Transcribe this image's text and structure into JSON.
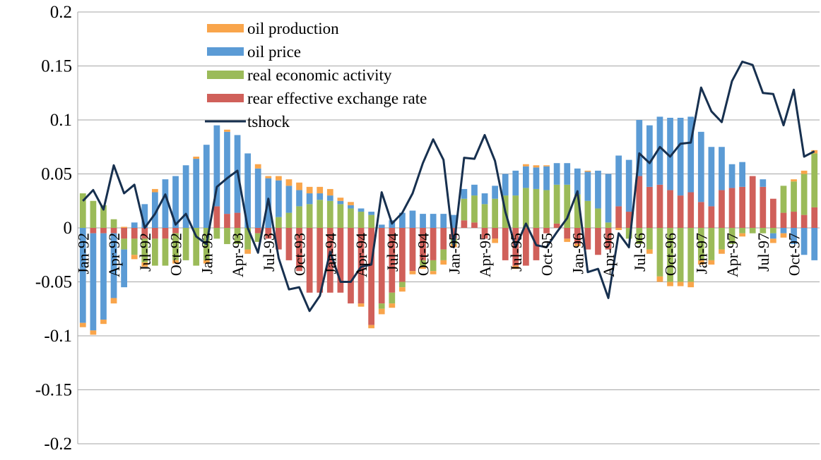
{
  "chart_data": {
    "type": "bar",
    "categories": [
      "Jan-92",
      null,
      null,
      "Apr-92",
      null,
      null,
      "Jul-92",
      null,
      null,
      "Oct-92",
      null,
      null,
      "Jan-93",
      null,
      null,
      "Apr-93",
      null,
      null,
      "Jul-93",
      null,
      null,
      "Oct-93",
      null,
      null,
      "Jan-94",
      null,
      null,
      "Apr-94",
      null,
      null,
      "Jul-94",
      null,
      null,
      "Oct-94",
      null,
      null,
      "Jan-95",
      null,
      null,
      "Apr-95",
      null,
      null,
      "Jul-95",
      null,
      null,
      "Oct-95",
      null,
      null,
      "Jan-96",
      null,
      null,
      "Apr-96",
      null,
      null,
      "Jul-96",
      null,
      null,
      "Oct-96",
      null,
      null,
      "Jan-97",
      null,
      null,
      "Apr-97",
      null,
      null,
      "Jul-97",
      null,
      null,
      "Oct-97",
      null,
      null
    ],
    "series": [
      {
        "name": "oil production",
        "color": "#f9a54b",
        "values": [
          -0.004,
          -0.004,
          -0.004,
          -0.005,
          0.001,
          -0.004,
          -0.004,
          0.003,
          0.0,
          -0.003,
          0.0,
          0.002,
          -0.003,
          0.0,
          0.002,
          0.0,
          -0.004,
          0.004,
          0.002,
          0.004,
          0.006,
          0.007,
          0.006,
          0.006,
          0.006,
          0.003,
          0.003,
          -0.003,
          -0.003,
          -0.005,
          -0.004,
          -0.004,
          -0.003,
          -0.003,
          -0.003,
          -0.004,
          -0.003,
          0.0,
          0.0,
          0.0,
          -0.004,
          0.0,
          -0.003,
          0.002,
          0.002,
          0.001,
          0.0,
          -0.003,
          -0.002,
          0.001,
          0.0,
          0.0,
          -0.002,
          0.0,
          0.0,
          -0.004,
          -0.005,
          -0.004,
          -0.004,
          -0.005,
          -0.004,
          -0.004,
          -0.004,
          0.0,
          -0.003,
          0.0,
          0.0,
          -0.004,
          -0.004,
          0.002,
          0.003,
          0.003
        ]
      },
      {
        "name": "oil price",
        "color": "#5b9bd5",
        "values": [
          -0.088,
          -0.09,
          -0.08,
          -0.06,
          -0.035,
          0.005,
          0.022,
          0.033,
          0.045,
          0.048,
          0.058,
          0.064,
          0.077,
          0.075,
          0.076,
          0.072,
          0.069,
          0.055,
          0.046,
          0.034,
          0.025,
          0.015,
          0.01,
          0.006,
          0.005,
          0.003,
          0.003,
          0.003,
          0.003,
          0.003,
          0.007,
          0.014,
          0.016,
          0.013,
          0.013,
          0.013,
          0.012,
          0.009,
          0.01,
          0.01,
          0.012,
          0.02,
          0.023,
          0.02,
          0.02,
          0.022,
          0.02,
          0.02,
          0.024,
          0.027,
          0.035,
          0.045,
          0.047,
          0.048,
          0.052,
          0.057,
          0.063,
          0.067,
          0.072,
          0.07,
          0.065,
          0.055,
          0.04,
          0.022,
          0.023,
          0.0,
          0.007,
          -0.005,
          -0.005,
          -0.015,
          -0.025,
          -0.03
        ]
      },
      {
        "name": "real economic activity",
        "color": "#9bbb59",
        "values": [
          0.032,
          0.025,
          0.021,
          0.008,
          -0.01,
          -0.015,
          -0.022,
          -0.025,
          -0.025,
          -0.025,
          -0.03,
          -0.035,
          -0.03,
          -0.01,
          -0.015,
          -0.015,
          -0.02,
          -0.008,
          0.0,
          0.01,
          0.014,
          0.02,
          0.022,
          0.026,
          0.025,
          0.022,
          0.018,
          0.015,
          0.012,
          -0.005,
          -0.01,
          -0.005,
          0.0,
          -0.005,
          -0.01,
          -0.01,
          -0.005,
          0.02,
          0.025,
          0.022,
          0.027,
          0.03,
          0.03,
          0.037,
          0.036,
          0.035,
          0.036,
          0.04,
          0.031,
          0.025,
          0.018,
          0.005,
          0.0,
          -0.01,
          -0.015,
          -0.02,
          -0.045,
          -0.05,
          -0.05,
          -0.05,
          -0.03,
          -0.03,
          -0.02,
          -0.015,
          -0.005,
          -0.005,
          -0.005,
          -0.005,
          0.025,
          0.028,
          0.038,
          0.05
        ]
      },
      {
        "name": "rear effective exchange rate",
        "color": "#d0605a",
        "values": [
          0.0,
          -0.005,
          -0.005,
          -0.005,
          -0.01,
          -0.01,
          -0.01,
          -0.01,
          -0.01,
          -0.005,
          0.0,
          0.0,
          0.0,
          0.02,
          0.013,
          0.014,
          0.0,
          -0.005,
          -0.01,
          -0.02,
          -0.03,
          -0.04,
          -0.06,
          -0.06,
          -0.06,
          -0.06,
          -0.07,
          -0.07,
          -0.09,
          -0.07,
          -0.06,
          -0.05,
          -0.04,
          -0.03,
          -0.03,
          -0.02,
          -0.01,
          0.007,
          0.005,
          -0.01,
          -0.01,
          -0.03,
          -0.035,
          -0.035,
          -0.03,
          -0.005,
          0.004,
          -0.01,
          -0.015,
          -0.02,
          -0.025,
          -0.02,
          0.02,
          0.015,
          0.048,
          0.038,
          0.04,
          0.035,
          0.03,
          0.033,
          0.024,
          0.02,
          0.035,
          0.037,
          0.038,
          0.048,
          0.038,
          0.027,
          0.014,
          0.015,
          0.012,
          0.019
        ]
      },
      {
        "name": "tshock",
        "color": "#17304f",
        "line": true,
        "values": [
          0.025,
          0.035,
          0.017,
          0.058,
          0.032,
          0.04,
          0.0,
          0.013,
          0.031,
          0.003,
          0.013,
          -0.008,
          -0.015,
          0.038,
          0.046,
          0.053,
          0.0,
          -0.023,
          0.027,
          -0.028,
          -0.057,
          -0.055,
          -0.077,
          -0.063,
          -0.022,
          -0.05,
          -0.05,
          -0.036,
          -0.034,
          0.033,
          0.004,
          0.014,
          0.032,
          0.06,
          0.082,
          0.063,
          -0.018,
          0.065,
          0.064,
          0.086,
          0.062,
          0.015,
          -0.018,
          0.004,
          -0.016,
          -0.018,
          -0.004,
          0.009,
          0.034,
          -0.041,
          -0.038,
          -0.065,
          -0.005,
          -0.018,
          0.069,
          0.06,
          0.075,
          0.066,
          0.078,
          0.079,
          0.13,
          0.108,
          0.098,
          0.136,
          0.154,
          0.151,
          0.125,
          0.124,
          0.095,
          0.128,
          0.066,
          0.071
        ]
      }
    ],
    "ylim": [
      -0.2,
      0.2
    ],
    "yticks": [
      -0.2,
      -0.15,
      -0.1,
      -0.05,
      0,
      0.05,
      0.1,
      0.15,
      0.2
    ],
    "grid": true
  }
}
